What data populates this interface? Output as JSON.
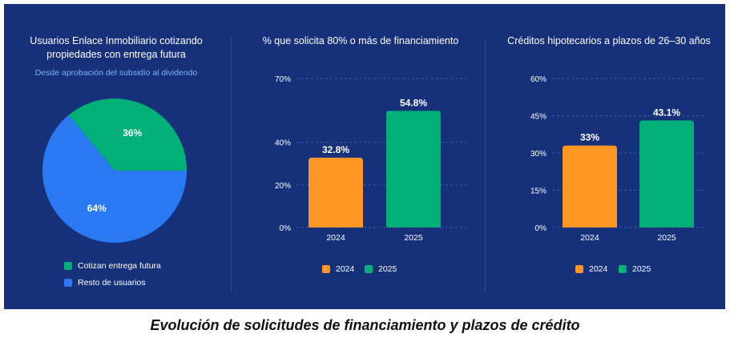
{
  "colors": {
    "background": "#16307a",
    "green": "#00b077",
    "blue": "#2979f2",
    "orange": "#ff9626",
    "grid": "#3a5aa6"
  },
  "caption": "Evolución de solicitudes de financiamiento y plazos de crédito",
  "chart_data": [
    {
      "type": "pie",
      "title": "Usuarios Enlace Inmobiliario cotizando propiedades con entrega futura",
      "subtitle": "Desde aprobación del subsidio al dividendo",
      "slices": [
        {
          "label": "Cotizan entrega futura",
          "value": 36,
          "value_label": "36%",
          "color": "#00b077"
        },
        {
          "label": "Resto de usuarios",
          "value": 64,
          "value_label": "64%",
          "color": "#2979f2"
        }
      ],
      "legend": "bottom-left"
    },
    {
      "type": "bar",
      "title": "% que solicita 80% o más de financiamiento",
      "categories": [
        "2024",
        "2025"
      ],
      "values": [
        32.8,
        54.8
      ],
      "value_labels": [
        "32.8%",
        "54.8%"
      ],
      "colors": [
        "#ff9626",
        "#00b077"
      ],
      "ylim": [
        0,
        70
      ],
      "yticks": [
        0,
        20,
        40,
        70
      ],
      "ytick_labels": [
        "0%",
        "20%",
        "40%",
        "70%"
      ],
      "grid": true,
      "legend": "bottom",
      "legend_entries": [
        "2024",
        "2025"
      ]
    },
    {
      "type": "bar",
      "title": "Créditos hipotecarios a plazos de 26–30 años",
      "categories": [
        "2024",
        "2025"
      ],
      "values": [
        33,
        43.1
      ],
      "value_labels": [
        "33%",
        "43.1%"
      ],
      "colors": [
        "#ff9626",
        "#00b077"
      ],
      "ylim": [
        0,
        60
      ],
      "yticks": [
        0,
        15,
        30,
        45,
        60
      ],
      "ytick_labels": [
        "0%",
        "15%",
        "30%",
        "45%",
        "60%"
      ],
      "grid": true,
      "legend": "bottom",
      "legend_entries": [
        "2024",
        "2025"
      ]
    }
  ]
}
